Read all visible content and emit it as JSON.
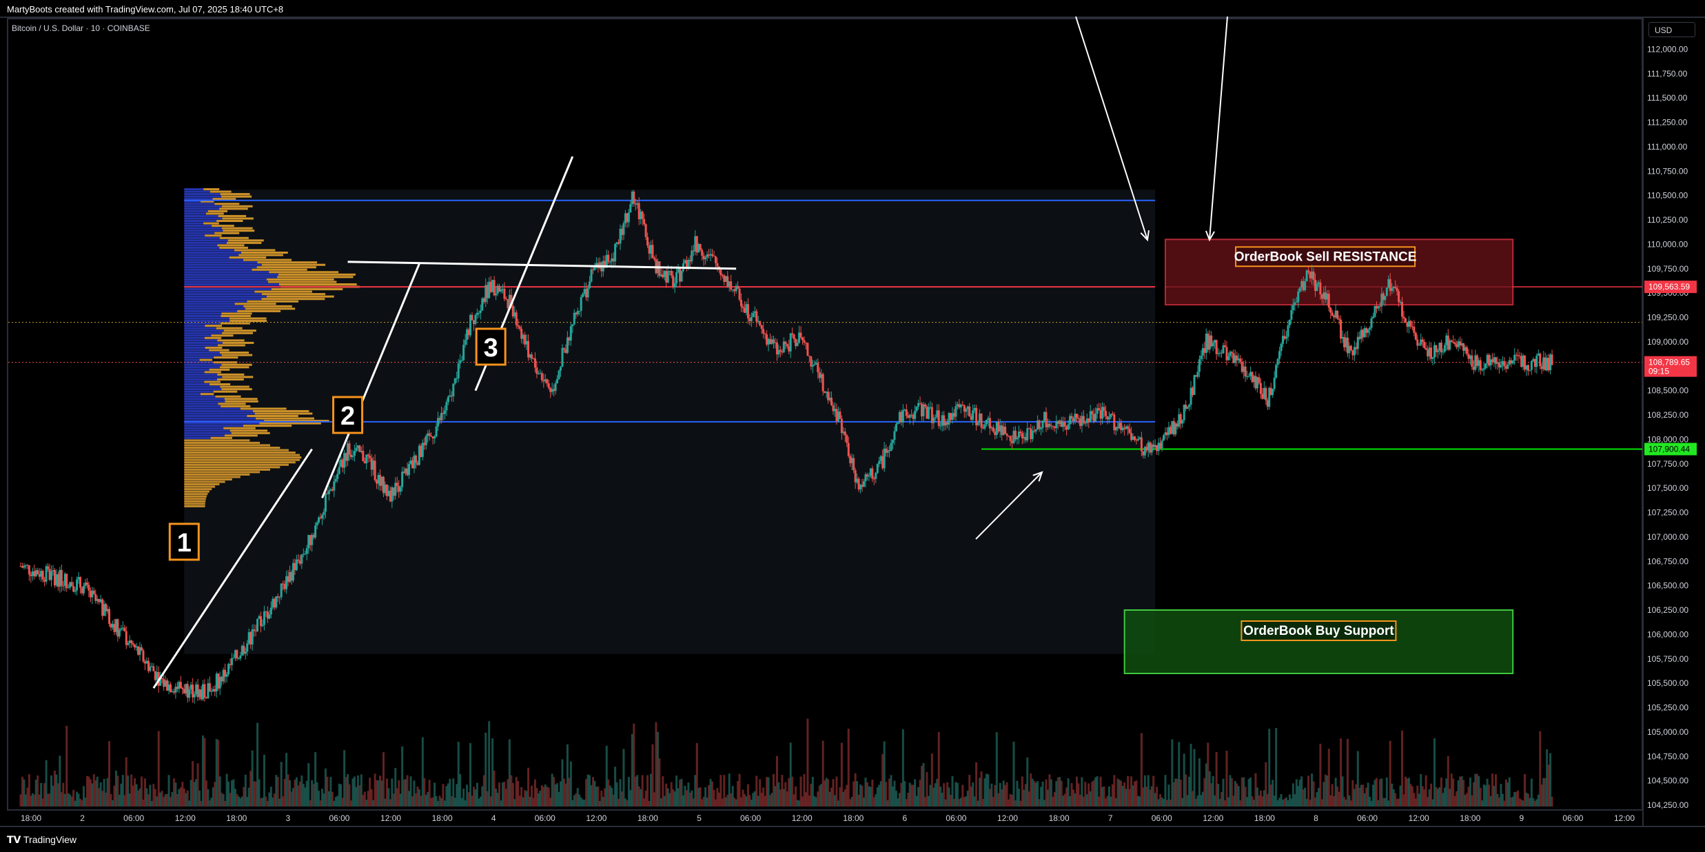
{
  "header": {
    "attribution": "MartyBoots created with TradingView.com, Jul 07, 2025 18:40 UTC+8"
  },
  "symbol": {
    "title": "Bitcoin / U.S. Dollar · 10 · COINBASE"
  },
  "currency": "USD",
  "footer": {
    "brand": "TradingView",
    "logo": "tv-logo-icon"
  },
  "colors": {
    "up": "#26a69a",
    "down": "#ef5350",
    "resistance_line": "#f23645",
    "support_line": "#22ab94",
    "band_line": "#2962ff",
    "profile_up": "#f0a92e",
    "profile_blue": "#2a3cc9",
    "box_label_border": "#f7941d"
  },
  "chart_data": {
    "type": "line",
    "xlabel": "",
    "ylabel": "",
    "ylim": [
      104250,
      112250
    ],
    "x_ticks": [
      "18:00",
      "2",
      "06:00",
      "12:00",
      "18:00",
      "3",
      "06:00",
      "12:00",
      "18:00",
      "4",
      "06:00",
      "12:00",
      "18:00",
      "5",
      "06:00",
      "12:00",
      "18:00",
      "6",
      "06:00",
      "12:00",
      "18:00",
      "7",
      "06:00",
      "12:00",
      "18:00",
      "8",
      "06:00",
      "12:00",
      "18:00",
      "9",
      "06:00",
      "12:00"
    ],
    "y_ticks": [
      104250,
      104500,
      104750,
      105000,
      105250,
      105500,
      105750,
      106000,
      106250,
      106500,
      106750,
      107000,
      107250,
      107500,
      107750,
      108000,
      108250,
      108500,
      108750,
      109000,
      109250,
      109500,
      109750,
      110000,
      110250,
      110500,
      110750,
      111000,
      111250,
      111500,
      111750,
      112000
    ],
    "y_tick_labels": [
      "104,250.00",
      "104,500.00",
      "104,750.00",
      "105,000.00",
      "105,250.00",
      "105,500.00",
      "105,750.00",
      "106,000.00",
      "106,250.00",
      "106,500.00",
      "106,750.00",
      "107,000.00",
      "107,250.00",
      "107,500.00",
      "107,750.00",
      "108,000.00",
      "108,250.00",
      "108,500.00",
      "108,750.00",
      "109,000.00",
      "109,250.00",
      "109,500.00",
      "109,750.00",
      "110,000.00",
      "110,250.00",
      "110,500.00",
      "110,750.00",
      "111,000.00",
      "111,250.00",
      "111,500.00",
      "111,750.00",
      "112,000.00"
    ],
    "price_path": {
      "x_hours": [
        0,
        6,
        10,
        14,
        18,
        20,
        24,
        28,
        30,
        32,
        34,
        36,
        40,
        42,
        44,
        46,
        48,
        50,
        52,
        54,
        56,
        58,
        60,
        62,
        64,
        66,
        68,
        70,
        72,
        74,
        76,
        78,
        80,
        82,
        84,
        86,
        88,
        90,
        92,
        94,
        96,
        98,
        100,
        102,
        104,
        106,
        108,
        110,
        112,
        114,
        116,
        118,
        120,
        122,
        124,
        126,
        128,
        130,
        132,
        134,
        136,
        138,
        140,
        142,
        144,
        146,
        148,
        150
      ],
      "y": [
        106700,
        106500,
        106000,
        105500,
        105400,
        105600,
        106200,
        106900,
        107400,
        107900,
        107800,
        107400,
        108000,
        108400,
        109200,
        109600,
        109400,
        108800,
        108500,
        109200,
        109700,
        109900,
        110500,
        109800,
        109600,
        110000,
        109800,
        109500,
        109200,
        108900,
        109050,
        108700,
        108200,
        107500,
        107700,
        108200,
        108300,
        108200,
        108300,
        108200,
        108100,
        108000,
        108200,
        108150,
        108200,
        108250,
        108100,
        107900,
        108000,
        108300,
        109000,
        108900,
        108700,
        108400,
        109200,
        109700,
        109400,
        108900,
        109200,
        109600,
        109100,
        108900,
        109000,
        108800,
        108800,
        108800,
        108790,
        108790
      ]
    },
    "levels": {
      "current_price": 108789.65,
      "current_price_label": "108,789.65",
      "countdown": "09:15",
      "resistance_price": 109563.59,
      "resistance_label": "109,563.59",
      "support_price": 107900.44,
      "support_label": "107,900.44",
      "band_top": 110450,
      "band_bottom": 108180,
      "dotted_level": 109200
    },
    "zones": [
      {
        "label": "OrderBook Sell RESISTANCE",
        "from_hour": 112,
        "to_hour": 146,
        "y_top": 110050,
        "y_bottom": 109380,
        "color": "#f23645"
      },
      {
        "label": "OrderBook Buy Support",
        "from_hour": 108,
        "to_hour": 146,
        "y_top": 106250,
        "y_bottom": 105600,
        "color": "#1c8c1c"
      }
    ],
    "annotations": [
      {
        "label": "1",
        "hour": 16,
        "y": 106950
      },
      {
        "label": "2",
        "hour": 32,
        "y": 108250
      },
      {
        "label": "3",
        "hour": 46,
        "y": 108950
      }
    ]
  }
}
